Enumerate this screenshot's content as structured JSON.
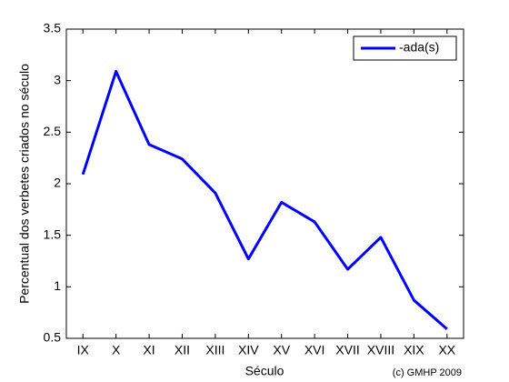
{
  "chart_data": {
    "type": "line",
    "categories": [
      "IX",
      "X",
      "XI",
      "XII",
      "XIII",
      "XIV",
      "XV",
      "XVI",
      "XVII",
      "XVIII",
      "XIX",
      "XX"
    ],
    "series": [
      {
        "name": "-ada(s)",
        "color": "#0000ff",
        "values": [
          2.09,
          3.09,
          2.38,
          2.24,
          1.91,
          1.27,
          1.82,
          1.63,
          1.17,
          1.48,
          0.87,
          0.59
        ]
      }
    ],
    "xlabel": "Século",
    "ylabel": "Percentual dos verbetes criados no século",
    "annotation": "(c) GMHP 2009",
    "ylim": [
      0.5,
      3.5
    ],
    "yticks": [
      0.5,
      1,
      1.5,
      2,
      2.5,
      3,
      3.5
    ],
    "legend": "upper right",
    "grid": false
  }
}
